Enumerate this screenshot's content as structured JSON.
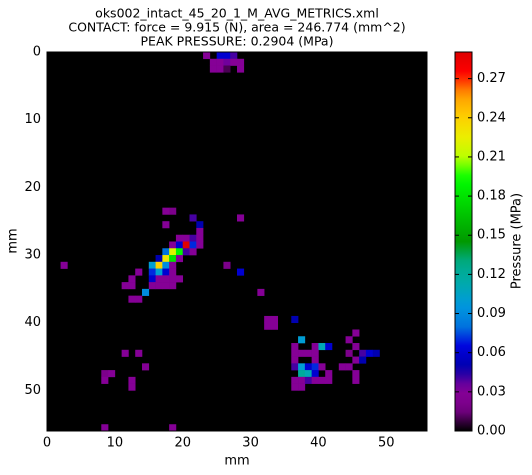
{
  "chart_data": {
    "type": "heatmap",
    "title": [
      "oks002_intact_45_20_1_M_AVG_METRICS.xml",
      "CONTACT: force = 9.915 (N), area = 246.774 (mm^2)",
      "PEAK PRESSURE: 0.2904 (MPa)"
    ],
    "x_label": "mm",
    "y_label": "mm",
    "colorbar_label": "Pressure (MPa)",
    "colormap": "nipy_spectral",
    "background": "#000000",
    "xlim": [
      0,
      56
    ],
    "ylim": [
      56,
      0
    ],
    "xticks": [
      0,
      10,
      20,
      30,
      40,
      50
    ],
    "yticks": [
      0,
      10,
      20,
      30,
      40,
      50
    ],
    "zlim": [
      0,
      0.2904
    ],
    "zticks": [
      {
        "value": 0,
        "label": "0.00"
      },
      0.03,
      0.06,
      0.09,
      0.12,
      0.15,
      0.18,
      0.21,
      0.24,
      0.27
    ],
    "x": [
      23,
      25,
      26,
      27,
      24,
      25,
      26,
      27,
      28,
      24,
      25,
      26,
      28,
      18,
      17,
      21,
      28,
      17,
      22,
      22,
      19,
      20,
      21,
      22,
      18,
      19,
      20,
      21,
      22,
      17,
      18,
      19,
      20,
      21,
      16,
      17,
      18,
      19,
      15,
      16,
      17,
      18,
      2,
      26,
      28,
      13,
      15,
      16,
      17,
      18,
      12,
      15,
      16,
      17,
      18,
      19,
      11,
      12,
      15,
      16,
      17,
      18,
      31,
      14,
      12,
      13,
      32,
      33,
      36,
      32,
      33,
      37,
      44,
      45,
      36,
      39,
      40,
      41,
      45,
      36,
      37,
      38,
      39,
      44,
      46,
      47,
      48,
      36,
      39,
      45,
      46,
      36,
      37,
      38,
      39,
      40,
      43,
      44,
      37,
      38,
      39,
      41,
      45,
      36,
      37,
      38,
      39,
      40,
      41,
      45,
      36,
      37,
      11,
      13,
      14,
      8,
      9,
      8,
      12,
      12,
      8,
      18
    ],
    "y": [
      0,
      0,
      0,
      0,
      1,
      1,
      1,
      1,
      1,
      2,
      2,
      2,
      2,
      23,
      23,
      24,
      24,
      25,
      25,
      26,
      27,
      27,
      27,
      27,
      28,
      28,
      28,
      28,
      28,
      29,
      29,
      29,
      29,
      29,
      30,
      30,
      30,
      30,
      31,
      31,
      31,
      31,
      31,
      31,
      32,
      32,
      32,
      32,
      32,
      32,
      33,
      33,
      33,
      33,
      33,
      33,
      34,
      34,
      34,
      34,
      34,
      34,
      35,
      35,
      36,
      36,
      39,
      39,
      39,
      40,
      40,
      42,
      42,
      41,
      43,
      43,
      43,
      43,
      43,
      44,
      44,
      44,
      44,
      44,
      44,
      44,
      44,
      45,
      45,
      45,
      45,
      46,
      46,
      46,
      46,
      46,
      46,
      46,
      47,
      47,
      47,
      47,
      47,
      48,
      48,
      48,
      48,
      48,
      48,
      48,
      49,
      49,
      44,
      44,
      46,
      47,
      47,
      48,
      48,
      49,
      55,
      55
    ],
    "values": [
      0.03,
      0.06,
      0.06,
      0.04,
      0.03,
      0.03,
      0.035,
      0.03,
      0.03,
      0.03,
      0.03,
      0.01,
      0.03,
      0.02,
      0.03,
      0.04,
      0.03,
      0.03,
      0.05,
      0.03,
      0.03,
      0.03,
      0.04,
      0.03,
      0.03,
      0.06,
      0.29,
      0.07,
      0.03,
      0.08,
      0.22,
      0.19,
      0.04,
      0.03,
      0.05,
      0.23,
      0.18,
      0.03,
      0.1,
      0.24,
      0.09,
      0.03,
      0.03,
      0.02,
      0.06,
      0.03,
      0.07,
      0.1,
      0.06,
      0.03,
      0.03,
      0.06,
      0.03,
      0.03,
      0.03,
      0.03,
      0.03,
      0.03,
      0.03,
      0.03,
      0.03,
      0.03,
      0.03,
      0.09,
      0.03,
      0.03,
      0.03,
      0.03,
      0.05,
      0.03,
      0.03,
      0.1,
      0.03,
      0.03,
      0.03,
      0.03,
      0.11,
      0.06,
      0.03,
      0.03,
      0.03,
      0.03,
      0.03,
      0.02,
      0.04,
      0.06,
      0.05,
      0.03,
      0.03,
      0.03,
      0.05,
      0.04,
      0.1,
      0.06,
      0.07,
      0.03,
      0.03,
      0.03,
      0.12,
      0.11,
      0.06,
      0.03,
      0.03,
      0.03,
      0.03,
      0.04,
      0.03,
      0.03,
      0.03,
      0.03,
      0.03,
      0.03,
      0.03,
      0.03,
      0.03,
      0.02,
      0.03,
      0.03,
      0.03,
      0.03,
      0.03,
      0.03
    ]
  }
}
